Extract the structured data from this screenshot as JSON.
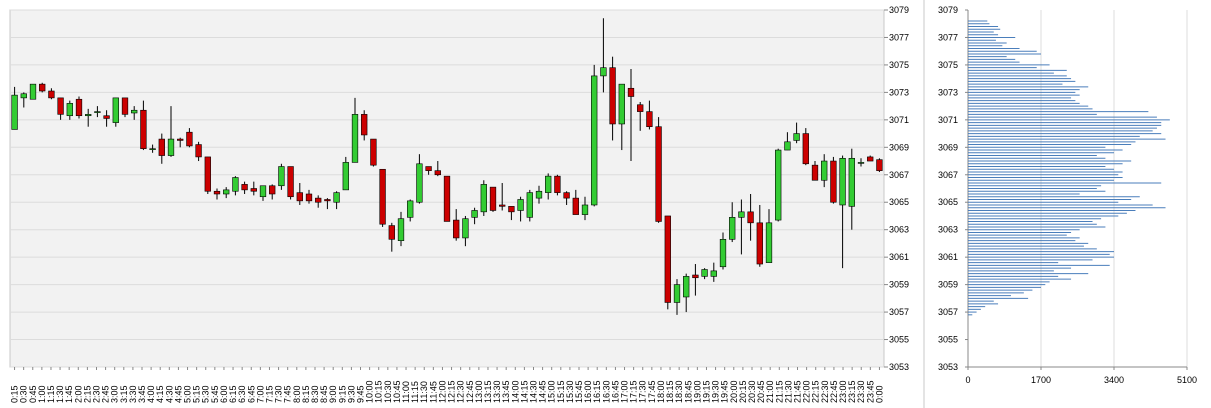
{
  "colors": {
    "plot_bg": "#f2f2f2",
    "grid": "#dcdcdc",
    "up_candle": "#33cc33",
    "down_candle": "#cc0000",
    "wick": "#000000",
    "volume_bar": "#4a7ebb",
    "profile_bar": "#4a7ebb",
    "axis_text": "#000000"
  },
  "chart_data": [
    {
      "type": "candlestick",
      "title": "",
      "xlabel": "",
      "ylabel": "",
      "y_axis_side": "right",
      "grid": true,
      "ylim": [
        3053,
        3079
      ],
      "y_ticks": [
        "3079",
        "3077",
        "3075",
        "3073",
        "3071",
        "3069",
        "3067",
        "3065",
        "3063",
        "3061",
        "3059",
        "3057",
        "3055",
        "3053"
      ],
      "time_ticks": [
        "0:15",
        "0:30",
        "0:45",
        "1:00",
        "1:15",
        "1:30",
        "1:45",
        "2:00",
        "2:15",
        "2:30",
        "2:45",
        "3:00",
        "3:15",
        "3:30",
        "3:45",
        "4:00",
        "4:15",
        "4:30",
        "4:45",
        "5:00",
        "5:15",
        "5:30",
        "5:45",
        "6:00",
        "6:15",
        "6:30",
        "6:45",
        "7:00",
        "7:15",
        "7:30",
        "7:45",
        "8:00",
        "8:15",
        "8:30",
        "8:45",
        "9:00",
        "9:15",
        "9:30",
        "9:45",
        "10:00",
        "10:15",
        "10:30",
        "10:45",
        "11:00",
        "11:15",
        "11:30",
        "11:45",
        "12:00",
        "12:15",
        "12:30",
        "12:45",
        "13:00",
        "13:15",
        "13:30",
        "13:45",
        "14:00",
        "14:15",
        "14:30",
        "14:45",
        "15:00",
        "15:15",
        "15:30",
        "15:45",
        "16:00",
        "16:15",
        "16:30",
        "16:45",
        "17:00",
        "17:15",
        "17:30",
        "17:45",
        "18:00",
        "18:15",
        "18:30",
        "18:45",
        "19:00",
        "19:15",
        "19:30",
        "19:45",
        "20:00",
        "20:15",
        "20:30",
        "20:45",
        "21:00",
        "21:15",
        "21:30",
        "21:45",
        "22:00",
        "22:15",
        "22:30",
        "22:45",
        "23:00",
        "23:15",
        "23:30",
        "23:45",
        "0:00"
      ],
      "candles": [
        {
          "o": 3070.3,
          "h": 3073.4,
          "l": 3070.3,
          "c": 3072.8
        },
        {
          "o": 3072.6,
          "h": 3073.0,
          "l": 3071.9,
          "c": 3072.9
        },
        {
          "o": 3072.5,
          "h": 3073.6,
          "l": 3072.5,
          "c": 3073.6
        },
        {
          "o": 3073.6,
          "h": 3073.7,
          "l": 3073.0,
          "c": 3073.1
        },
        {
          "o": 3073.1,
          "h": 3073.3,
          "l": 3072.5,
          "c": 3072.6
        },
        {
          "o": 3072.6,
          "h": 3072.6,
          "l": 3071.0,
          "c": 3071.4
        },
        {
          "o": 3071.3,
          "h": 3072.4,
          "l": 3071.0,
          "c": 3072.2
        },
        {
          "o": 3072.5,
          "h": 3072.7,
          "l": 3071.1,
          "c": 3071.3
        },
        {
          "o": 3071.3,
          "h": 3071.8,
          "l": 3070.5,
          "c": 3071.4
        },
        {
          "o": 3071.6,
          "h": 3072.0,
          "l": 3071.2,
          "c": 3071.6
        },
        {
          "o": 3071.3,
          "h": 3071.7,
          "l": 3070.5,
          "c": 3071.1
        },
        {
          "o": 3070.8,
          "h": 3072.6,
          "l": 3070.5,
          "c": 3072.6
        },
        {
          "o": 3072.6,
          "h": 3072.6,
          "l": 3071.2,
          "c": 3071.4
        },
        {
          "o": 3071.5,
          "h": 3072.0,
          "l": 3071.0,
          "c": 3071.7
        },
        {
          "o": 3071.7,
          "h": 3072.4,
          "l": 3068.8,
          "c": 3068.9
        },
        {
          "o": 3068.9,
          "h": 3069.2,
          "l": 3068.6,
          "c": 3068.9
        },
        {
          "o": 3069.6,
          "h": 3070.0,
          "l": 3067.8,
          "c": 3068.4
        },
        {
          "o": 3068.4,
          "h": 3072.0,
          "l": 3068.3,
          "c": 3069.6
        },
        {
          "o": 3069.6,
          "h": 3069.7,
          "l": 3069.0,
          "c": 3069.5
        },
        {
          "o": 3070.1,
          "h": 3070.4,
          "l": 3069.0,
          "c": 3069.1
        },
        {
          "o": 3069.2,
          "h": 3069.4,
          "l": 3068.0,
          "c": 3068.3
        },
        {
          "o": 3068.3,
          "h": 3068.3,
          "l": 3065.6,
          "c": 3065.8
        },
        {
          "o": 3065.8,
          "h": 3066.0,
          "l": 3065.2,
          "c": 3065.6
        },
        {
          "o": 3065.6,
          "h": 3066.1,
          "l": 3065.3,
          "c": 3065.9
        },
        {
          "o": 3065.8,
          "h": 3066.9,
          "l": 3065.5,
          "c": 3066.8
        },
        {
          "o": 3066.3,
          "h": 3066.5,
          "l": 3065.6,
          "c": 3065.9
        },
        {
          "o": 3066.0,
          "h": 3066.5,
          "l": 3065.5,
          "c": 3065.8
        },
        {
          "o": 3065.4,
          "h": 3066.2,
          "l": 3065.1,
          "c": 3066.2
        },
        {
          "o": 3066.2,
          "h": 3066.3,
          "l": 3065.2,
          "c": 3065.6
        },
        {
          "o": 3066.2,
          "h": 3067.8,
          "l": 3065.9,
          "c": 3067.6
        },
        {
          "o": 3067.6,
          "h": 3067.6,
          "l": 3065.2,
          "c": 3065.4
        },
        {
          "o": 3065.7,
          "h": 3066.4,
          "l": 3064.8,
          "c": 3065.1
        },
        {
          "o": 3065.6,
          "h": 3065.9,
          "l": 3064.9,
          "c": 3065.1
        },
        {
          "o": 3065.3,
          "h": 3065.5,
          "l": 3064.6,
          "c": 3065.0
        },
        {
          "o": 3065.2,
          "h": 3065.3,
          "l": 3064.5,
          "c": 3065.1
        },
        {
          "o": 3065.0,
          "h": 3065.8,
          "l": 3064.5,
          "c": 3065.7
        },
        {
          "o": 3065.9,
          "h": 3068.3,
          "l": 3065.9,
          "c": 3067.9
        },
        {
          "o": 3067.9,
          "h": 3072.6,
          "l": 3067.9,
          "c": 3071.4
        },
        {
          "o": 3071.4,
          "h": 3071.7,
          "l": 3069.5,
          "c": 3069.9
        },
        {
          "o": 3069.6,
          "h": 3069.6,
          "l": 3067.6,
          "c": 3067.7
        },
        {
          "o": 3067.4,
          "h": 3067.4,
          "l": 3063.2,
          "c": 3063.4
        },
        {
          "o": 3063.3,
          "h": 3063.5,
          "l": 3061.4,
          "c": 3062.3
        },
        {
          "o": 3062.2,
          "h": 3064.3,
          "l": 3061.8,
          "c": 3063.8
        },
        {
          "o": 3063.9,
          "h": 3065.2,
          "l": 3063.6,
          "c": 3065.1
        },
        {
          "o": 3065.0,
          "h": 3068.5,
          "l": 3064.9,
          "c": 3067.8
        },
        {
          "o": 3067.6,
          "h": 3067.6,
          "l": 3067.0,
          "c": 3067.3
        },
        {
          "o": 3067.3,
          "h": 3068.0,
          "l": 3066.9,
          "c": 3067.0
        },
        {
          "o": 3066.9,
          "h": 3066.9,
          "l": 3063.6,
          "c": 3063.6
        },
        {
          "o": 3063.7,
          "h": 3064.5,
          "l": 3062.2,
          "c": 3062.4
        },
        {
          "o": 3062.4,
          "h": 3064.0,
          "l": 3061.8,
          "c": 3063.8
        },
        {
          "o": 3063.9,
          "h": 3064.6,
          "l": 3063.4,
          "c": 3064.4
        },
        {
          "o": 3064.3,
          "h": 3066.6,
          "l": 3064.0,
          "c": 3066.3
        },
        {
          "o": 3066.1,
          "h": 3066.1,
          "l": 3064.3,
          "c": 3064.4
        },
        {
          "o": 3064.8,
          "h": 3066.4,
          "l": 3064.4,
          "c": 3064.7
        },
        {
          "o": 3064.7,
          "h": 3064.7,
          "l": 3063.7,
          "c": 3064.3
        },
        {
          "o": 3064.4,
          "h": 3065.4,
          "l": 3063.6,
          "c": 3065.2
        },
        {
          "o": 3063.9,
          "h": 3065.9,
          "l": 3063.6,
          "c": 3065.7
        },
        {
          "o": 3065.3,
          "h": 3066.2,
          "l": 3064.9,
          "c": 3065.8
        },
        {
          "o": 3065.7,
          "h": 3067.1,
          "l": 3065.2,
          "c": 3066.9
        },
        {
          "o": 3066.9,
          "h": 3067.0,
          "l": 3065.5,
          "c": 3065.7
        },
        {
          "o": 3065.7,
          "h": 3065.8,
          "l": 3064.8,
          "c": 3065.3
        },
        {
          "o": 3065.3,
          "h": 3065.9,
          "l": 3064.1,
          "c": 3064.1
        },
        {
          "o": 3064.1,
          "h": 3065.4,
          "l": 3063.7,
          "c": 3064.8
        },
        {
          "o": 3064.8,
          "h": 3075.0,
          "l": 3064.7,
          "c": 3074.2
        },
        {
          "o": 3074.2,
          "h": 3078.4,
          "l": 3073.0,
          "c": 3074.8
        },
        {
          "o": 3074.8,
          "h": 3075.6,
          "l": 3069.5,
          "c": 3070.7
        },
        {
          "o": 3070.7,
          "h": 3073.6,
          "l": 3068.8,
          "c": 3073.6
        },
        {
          "o": 3073.3,
          "h": 3074.7,
          "l": 3068.0,
          "c": 3072.7
        },
        {
          "o": 3072.1,
          "h": 3072.3,
          "l": 3070.2,
          "c": 3071.6
        },
        {
          "o": 3071.6,
          "h": 3072.4,
          "l": 3070.3,
          "c": 3070.5
        },
        {
          "o": 3070.5,
          "h": 3071.2,
          "l": 3063.5,
          "c": 3063.6
        },
        {
          "o": 3064.0,
          "h": 3064.0,
          "l": 3057.2,
          "c": 3057.7
        },
        {
          "o": 3057.7,
          "h": 3059.4,
          "l": 3056.8,
          "c": 3059.0
        },
        {
          "o": 3058.1,
          "h": 3059.8,
          "l": 3057.0,
          "c": 3059.6
        },
        {
          "o": 3059.7,
          "h": 3060.5,
          "l": 3058.2,
          "c": 3059.5
        },
        {
          "o": 3059.6,
          "h": 3060.2,
          "l": 3059.4,
          "c": 3060.1
        },
        {
          "o": 3059.6,
          "h": 3060.6,
          "l": 3059.2,
          "c": 3060.0
        },
        {
          "o": 3060.3,
          "h": 3062.8,
          "l": 3060.1,
          "c": 3062.3
        },
        {
          "o": 3062.3,
          "h": 3065.0,
          "l": 3062.1,
          "c": 3063.9
        },
        {
          "o": 3063.9,
          "h": 3065.2,
          "l": 3061.2,
          "c": 3064.3
        },
        {
          "o": 3064.3,
          "h": 3065.6,
          "l": 3062.2,
          "c": 3063.5
        },
        {
          "o": 3063.5,
          "h": 3064.8,
          "l": 3060.3,
          "c": 3060.5
        },
        {
          "o": 3060.6,
          "h": 3064.5,
          "l": 3060.6,
          "c": 3063.5
        },
        {
          "o": 3063.7,
          "h": 3068.9,
          "l": 3063.6,
          "c": 3068.8
        },
        {
          "o": 3068.8,
          "h": 3070.1,
          "l": 3068.8,
          "c": 3069.4
        },
        {
          "o": 3069.5,
          "h": 3070.8,
          "l": 3069.3,
          "c": 3070.0
        },
        {
          "o": 3070.0,
          "h": 3070.4,
          "l": 3067.7,
          "c": 3067.8
        },
        {
          "o": 3067.7,
          "h": 3068.0,
          "l": 3066.6,
          "c": 3066.6
        },
        {
          "o": 3066.6,
          "h": 3068.5,
          "l": 3066.1,
          "c": 3068.0
        },
        {
          "o": 3068.0,
          "h": 3068.3,
          "l": 3064.9,
          "c": 3065.0
        },
        {
          "o": 3064.8,
          "h": 3068.4,
          "l": 3060.2,
          "c": 3068.2
        },
        {
          "o": 3064.7,
          "h": 3068.9,
          "l": 3063.0,
          "c": 3068.2
        },
        {
          "o": 3067.9,
          "h": 3068.2,
          "l": 3067.6,
          "c": 3067.9
        },
        {
          "o": 3068.3,
          "h": 3068.4,
          "l": 3068.0,
          "c": 3068.0
        },
        {
          "o": 3068.1,
          "h": 3068.2,
          "l": 3067.2,
          "c": 3067.3
        }
      ],
      "volume": [
        0,
        0,
        0,
        0,
        0,
        0,
        0,
        0,
        0,
        0,
        0,
        0,
        0,
        0,
        0,
        0,
        0,
        0,
        0,
        0,
        0,
        0,
        0,
        0,
        0,
        0,
        0,
        0,
        0,
        0,
        0,
        0,
        0,
        0,
        0,
        0,
        0,
        0,
        0,
        0,
        0,
        0,
        0,
        0,
        0,
        0,
        0,
        0,
        0,
        0,
        0,
        0,
        0,
        0,
        0,
        0,
        0,
        0,
        0,
        0,
        0,
        0,
        0,
        0,
        0,
        0,
        0,
        0,
        0,
        0,
        0,
        0,
        0,
        0,
        0,
        0,
        0,
        0,
        0,
        0,
        0,
        0,
        0,
        0,
        0,
        0,
        0,
        0,
        0,
        0,
        0,
        0,
        0,
        0,
        0,
        0
      ]
    },
    {
      "type": "bar",
      "orientation": "horizontal",
      "title": "",
      "xlabel": "",
      "ylabel": "",
      "grid": true,
      "xlim": [
        0,
        5100
      ],
      "x_ticks": [
        "0",
        "1700",
        "3400",
        "5100"
      ],
      "ylim": [
        3053,
        3079
      ],
      "y_ticks": [
        "3079",
        "3077",
        "3075",
        "3073",
        "3071",
        "3069",
        "3067",
        "3065",
        "3063",
        "3061",
        "3059",
        "3057",
        "3055",
        "3053"
      ],
      "prices": [
        3078.2,
        3078.0,
        3077.8,
        3077.6,
        3077.4,
        3077.2,
        3077.0,
        3076.8,
        3076.6,
        3076.4,
        3076.2,
        3076.0,
        3075.8,
        3075.6,
        3075.4,
        3075.2,
        3075.0,
        3074.8,
        3074.6,
        3074.4,
        3074.2,
        3074.0,
        3073.8,
        3073.6,
        3073.4,
        3073.2,
        3073.0,
        3072.8,
        3072.6,
        3072.4,
        3072.2,
        3072.0,
        3071.8,
        3071.6,
        3071.4,
        3071.2,
        3071.0,
        3070.8,
        3070.6,
        3070.4,
        3070.2,
        3070.0,
        3069.8,
        3069.6,
        3069.4,
        3069.2,
        3069.0,
        3068.8,
        3068.6,
        3068.4,
        3068.2,
        3068.0,
        3067.8,
        3067.6,
        3067.4,
        3067.2,
        3067.0,
        3066.8,
        3066.6,
        3066.4,
        3066.2,
        3066.0,
        3065.8,
        3065.6,
        3065.4,
        3065.2,
        3065.0,
        3064.8,
        3064.6,
        3064.4,
        3064.2,
        3064.0,
        3063.8,
        3063.6,
        3063.4,
        3063.2,
        3063.0,
        3062.8,
        3062.6,
        3062.4,
        3062.2,
        3062.0,
        3061.8,
        3061.6,
        3061.4,
        3061.2,
        3061.0,
        3060.8,
        3060.6,
        3060.4,
        3060.2,
        3060.0,
        3059.8,
        3059.6,
        3059.4,
        3059.2,
        3059.0,
        3058.8,
        3058.6,
        3058.4,
        3058.2,
        3058.0,
        3057.8,
        3057.6,
        3057.4,
        3057.2,
        3057.0,
        3056.8
      ],
      "values": [
        450,
        500,
        700,
        750,
        600,
        700,
        1100,
        650,
        900,
        800,
        1200,
        1600,
        1700,
        900,
        1100,
        1200,
        1900,
        1600,
        2300,
        2000,
        2300,
        2400,
        2500,
        2200,
        2800,
        2600,
        2500,
        2600,
        2400,
        2500,
        2600,
        2800,
        2900,
        4200,
        3000,
        4400,
        4700,
        4500,
        4500,
        4400,
        4300,
        4500,
        4000,
        4600,
        3900,
        3800,
        3200,
        3600,
        3400,
        3000,
        3200,
        3800,
        3600,
        3200,
        3400,
        3600,
        3500,
        3600,
        3400,
        4500,
        3100,
        3000,
        3200,
        2600,
        4000,
        3800,
        3500,
        4300,
        4600,
        3900,
        3700,
        3500,
        3100,
        2900,
        3000,
        3200,
        2600,
        2400,
        2300,
        2600,
        2500,
        2800,
        2700,
        3000,
        3400,
        3300,
        3400,
        2900,
        2100,
        3300,
        2400,
        2000,
        2800,
        2100,
        2400,
        1900,
        1800,
        1700,
        1500,
        1300,
        1000,
        1400,
        600,
        700,
        400,
        300,
        200,
        100
      ]
    }
  ]
}
